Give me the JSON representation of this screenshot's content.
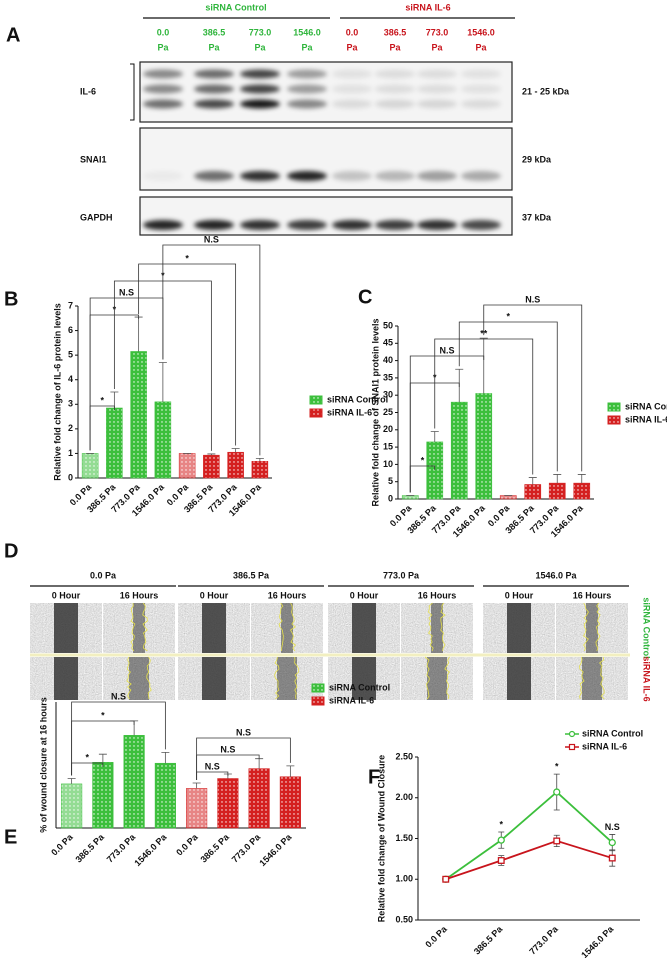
{
  "blot": {
    "panel": "A",
    "groups": [
      "siRNA Control",
      "siRNA IL-6"
    ],
    "lanes": [
      {
        "value": "0.0",
        "unit": "Pa"
      },
      {
        "value": "386.5",
        "unit": "Pa"
      },
      {
        "value": "773.0",
        "unit": "Pa"
      },
      {
        "value": "1546.0",
        "unit": "Pa"
      },
      {
        "value": "0.0",
        "unit": "Pa"
      },
      {
        "value": "386.5",
        "unit": "Pa"
      },
      {
        "value": "773.0",
        "unit": "Pa"
      },
      {
        "value": "1546.0",
        "unit": "Pa"
      }
    ],
    "rows": [
      {
        "name": "IL-6",
        "size": "21 - 25 kDa"
      },
      {
        "name": "SNAI1",
        "size": "29 kDa"
      },
      {
        "name": "GAPDH",
        "size": "37 kDa"
      }
    ]
  },
  "wound": {
    "panel": "D",
    "columns": [
      "0.0 Pa",
      "386.5 Pa",
      "773.0 Pa",
      "1546.0 Pa"
    ],
    "times": [
      "0 Hour",
      "16 Hours"
    ],
    "rows": [
      "siRNA Control",
      "siRNA IL-6"
    ]
  },
  "chart_data": [
    {
      "type": "bar",
      "panel": "B",
      "y_label": "Relative fold change of IL-6 protein levels",
      "categories": [
        "0.0 Pa",
        "386.5 Pa",
        "773.0 Pa",
        "1546.0 Pa",
        "0.0 Pa",
        "386.5 Pa",
        "773.0 Pa",
        "1546.0 Pa"
      ],
      "series": [
        {
          "name": "siRNA Control",
          "color": "#3cbf3c",
          "values": [
            1,
            2.85,
            5.15,
            3.1,
            null,
            null,
            null,
            null
          ],
          "errors": [
            0,
            0.65,
            1.4,
            1.6,
            null,
            null,
            null,
            null
          ]
        },
        {
          "name": "siRNA IL-6",
          "color": "#d42020",
          "values": [
            null,
            null,
            null,
            null,
            1,
            0.93,
            1.05,
            0.68
          ],
          "errors": [
            null,
            null,
            null,
            null,
            0,
            0.05,
            0.15,
            0.12
          ]
        }
      ],
      "ylim": [
        0,
        7
      ],
      "yticks": [
        0,
        1,
        2,
        3,
        4,
        5,
        6,
        7
      ],
      "annotations": [
        "*",
        "*",
        "N.S",
        "*",
        "*",
        "N.S"
      ]
    },
    {
      "type": "bar",
      "panel": "C",
      "y_label": "Relative fold change of SNAI1 protein levels",
      "categories": [
        "0.0 Pa",
        "386.5 Pa",
        "773.0 Pa",
        "1546.0 Pa",
        "0.0 Pa",
        "386.5 Pa",
        "773.0 Pa",
        "1546.0 Pa"
      ],
      "series": [
        {
          "name": "siRNA Control",
          "color": "#3cbf3c",
          "values": [
            1,
            16.5,
            28,
            30.5,
            null,
            null,
            null,
            null
          ],
          "errors": [
            0,
            3,
            9.5,
            16,
            null,
            null,
            null,
            null
          ]
        },
        {
          "name": "siRNA IL-6",
          "color": "#d42020",
          "values": [
            null,
            null,
            null,
            null,
            1,
            4.2,
            4.6,
            4.6
          ],
          "errors": [
            null,
            null,
            null,
            null,
            0,
            2,
            2.5,
            2.5
          ]
        }
      ],
      "ylim": [
        0,
        50
      ],
      "yticks": [
        0,
        5,
        10,
        15,
        20,
        25,
        30,
        35,
        40,
        45,
        50
      ],
      "annotations": [
        "*",
        "*",
        "N.S",
        "**",
        "*",
        "N.S"
      ]
    },
    {
      "type": "bar",
      "panel": "E",
      "y_label": "% of wound closure at 16 hours",
      "categories": [
        "0.0 Pa",
        "386.5 Pa",
        "773.0 Pa",
        "1546.0 Pa",
        "0.0 Pa",
        "386.5 Pa",
        "773.0 Pa",
        "1546.0 Pa"
      ],
      "series": [
        {
          "name": "siRNA Control",
          "color": "#3cbf3c",
          "values": [
            24.5,
            36.5,
            51.5,
            36,
            null,
            null,
            null,
            null
          ],
          "errors": [
            3,
            4.5,
            8,
            6,
            null,
            null,
            null,
            null
          ]
        },
        {
          "name": "siRNA IL-6",
          "color": "#d42020",
          "values": [
            null,
            null,
            null,
            null,
            22,
            27.5,
            33,
            28.5
          ],
          "errors": [
            null,
            null,
            null,
            null,
            3,
            2.5,
            5.5,
            6
          ]
        }
      ],
      "ylim": [
        0,
        70
      ],
      "annotations": [
        "*",
        "*",
        "N.S",
        "N.S",
        "N.S",
        "N.S"
      ]
    },
    {
      "type": "line",
      "panel": "F",
      "y_label": "Relative fold change of Wound Closure",
      "categories": [
        "0.0 Pa",
        "386.5 Pa",
        "773.0 Pa",
        "1546.0 Pa"
      ],
      "series": [
        {
          "name": "siRNA Control",
          "color": "#3cbf3c",
          "marker": "circle",
          "values": [
            1.0,
            1.48,
            2.07,
            1.45
          ],
          "errors": [
            0.02,
            0.1,
            0.22,
            0.1
          ]
        },
        {
          "name": "siRNA IL-6",
          "color": "#c8141c",
          "marker": "square",
          "values": [
            1.0,
            1.23,
            1.47,
            1.26
          ],
          "errors": [
            0.02,
            0.06,
            0.07,
            0.1
          ]
        }
      ],
      "ylim": [
        0.5,
        2.5
      ],
      "yticks": [
        {
          "value": 0.5,
          "label": "0.50"
        },
        {
          "value": 1.0,
          "label": "1.00"
        },
        {
          "value": 1.5,
          "label": "1.50"
        },
        {
          "value": 2.0,
          "label": "2.00"
        },
        {
          "value": 2.5,
          "label": "2.50"
        }
      ],
      "annotations": [
        "*",
        "*",
        "N.S"
      ]
    }
  ]
}
